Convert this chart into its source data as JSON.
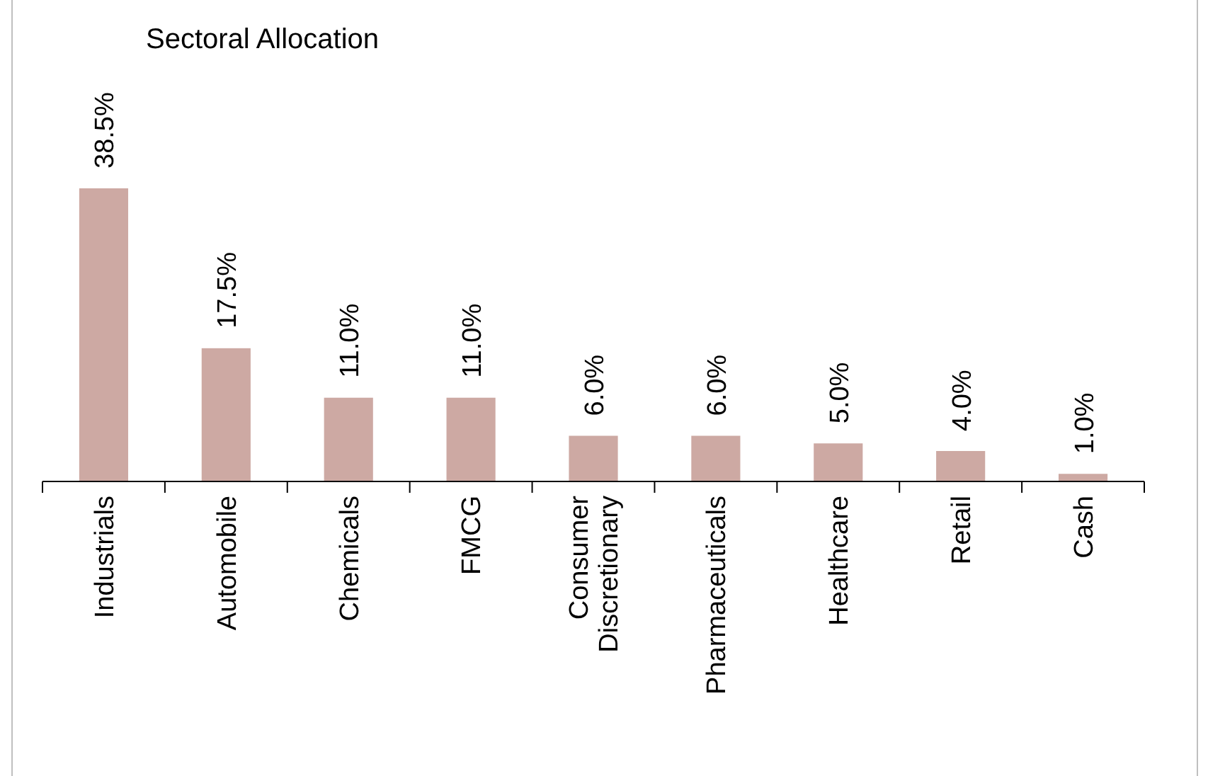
{
  "chart_data": {
    "type": "bar",
    "title": "Sectoral Allocation",
    "categories": [
      "Industrials",
      "Automobile",
      "Chemicals",
      "FMCG",
      "Consumer Discretionary",
      "Pharmaceuticals",
      "Healthcare",
      "Retail",
      "Cash"
    ],
    "values": [
      38.5,
      17.5,
      11.0,
      11.0,
      6.0,
      6.0,
      5.0,
      4.0,
      1.0
    ],
    "value_labels": [
      "38.5%",
      "17.5%",
      "11.0%",
      "11.0%",
      "6.0%",
      "6.0%",
      "5.0%",
      "4.0%",
      "1.0%"
    ],
    "color": "#cda9a3"
  }
}
